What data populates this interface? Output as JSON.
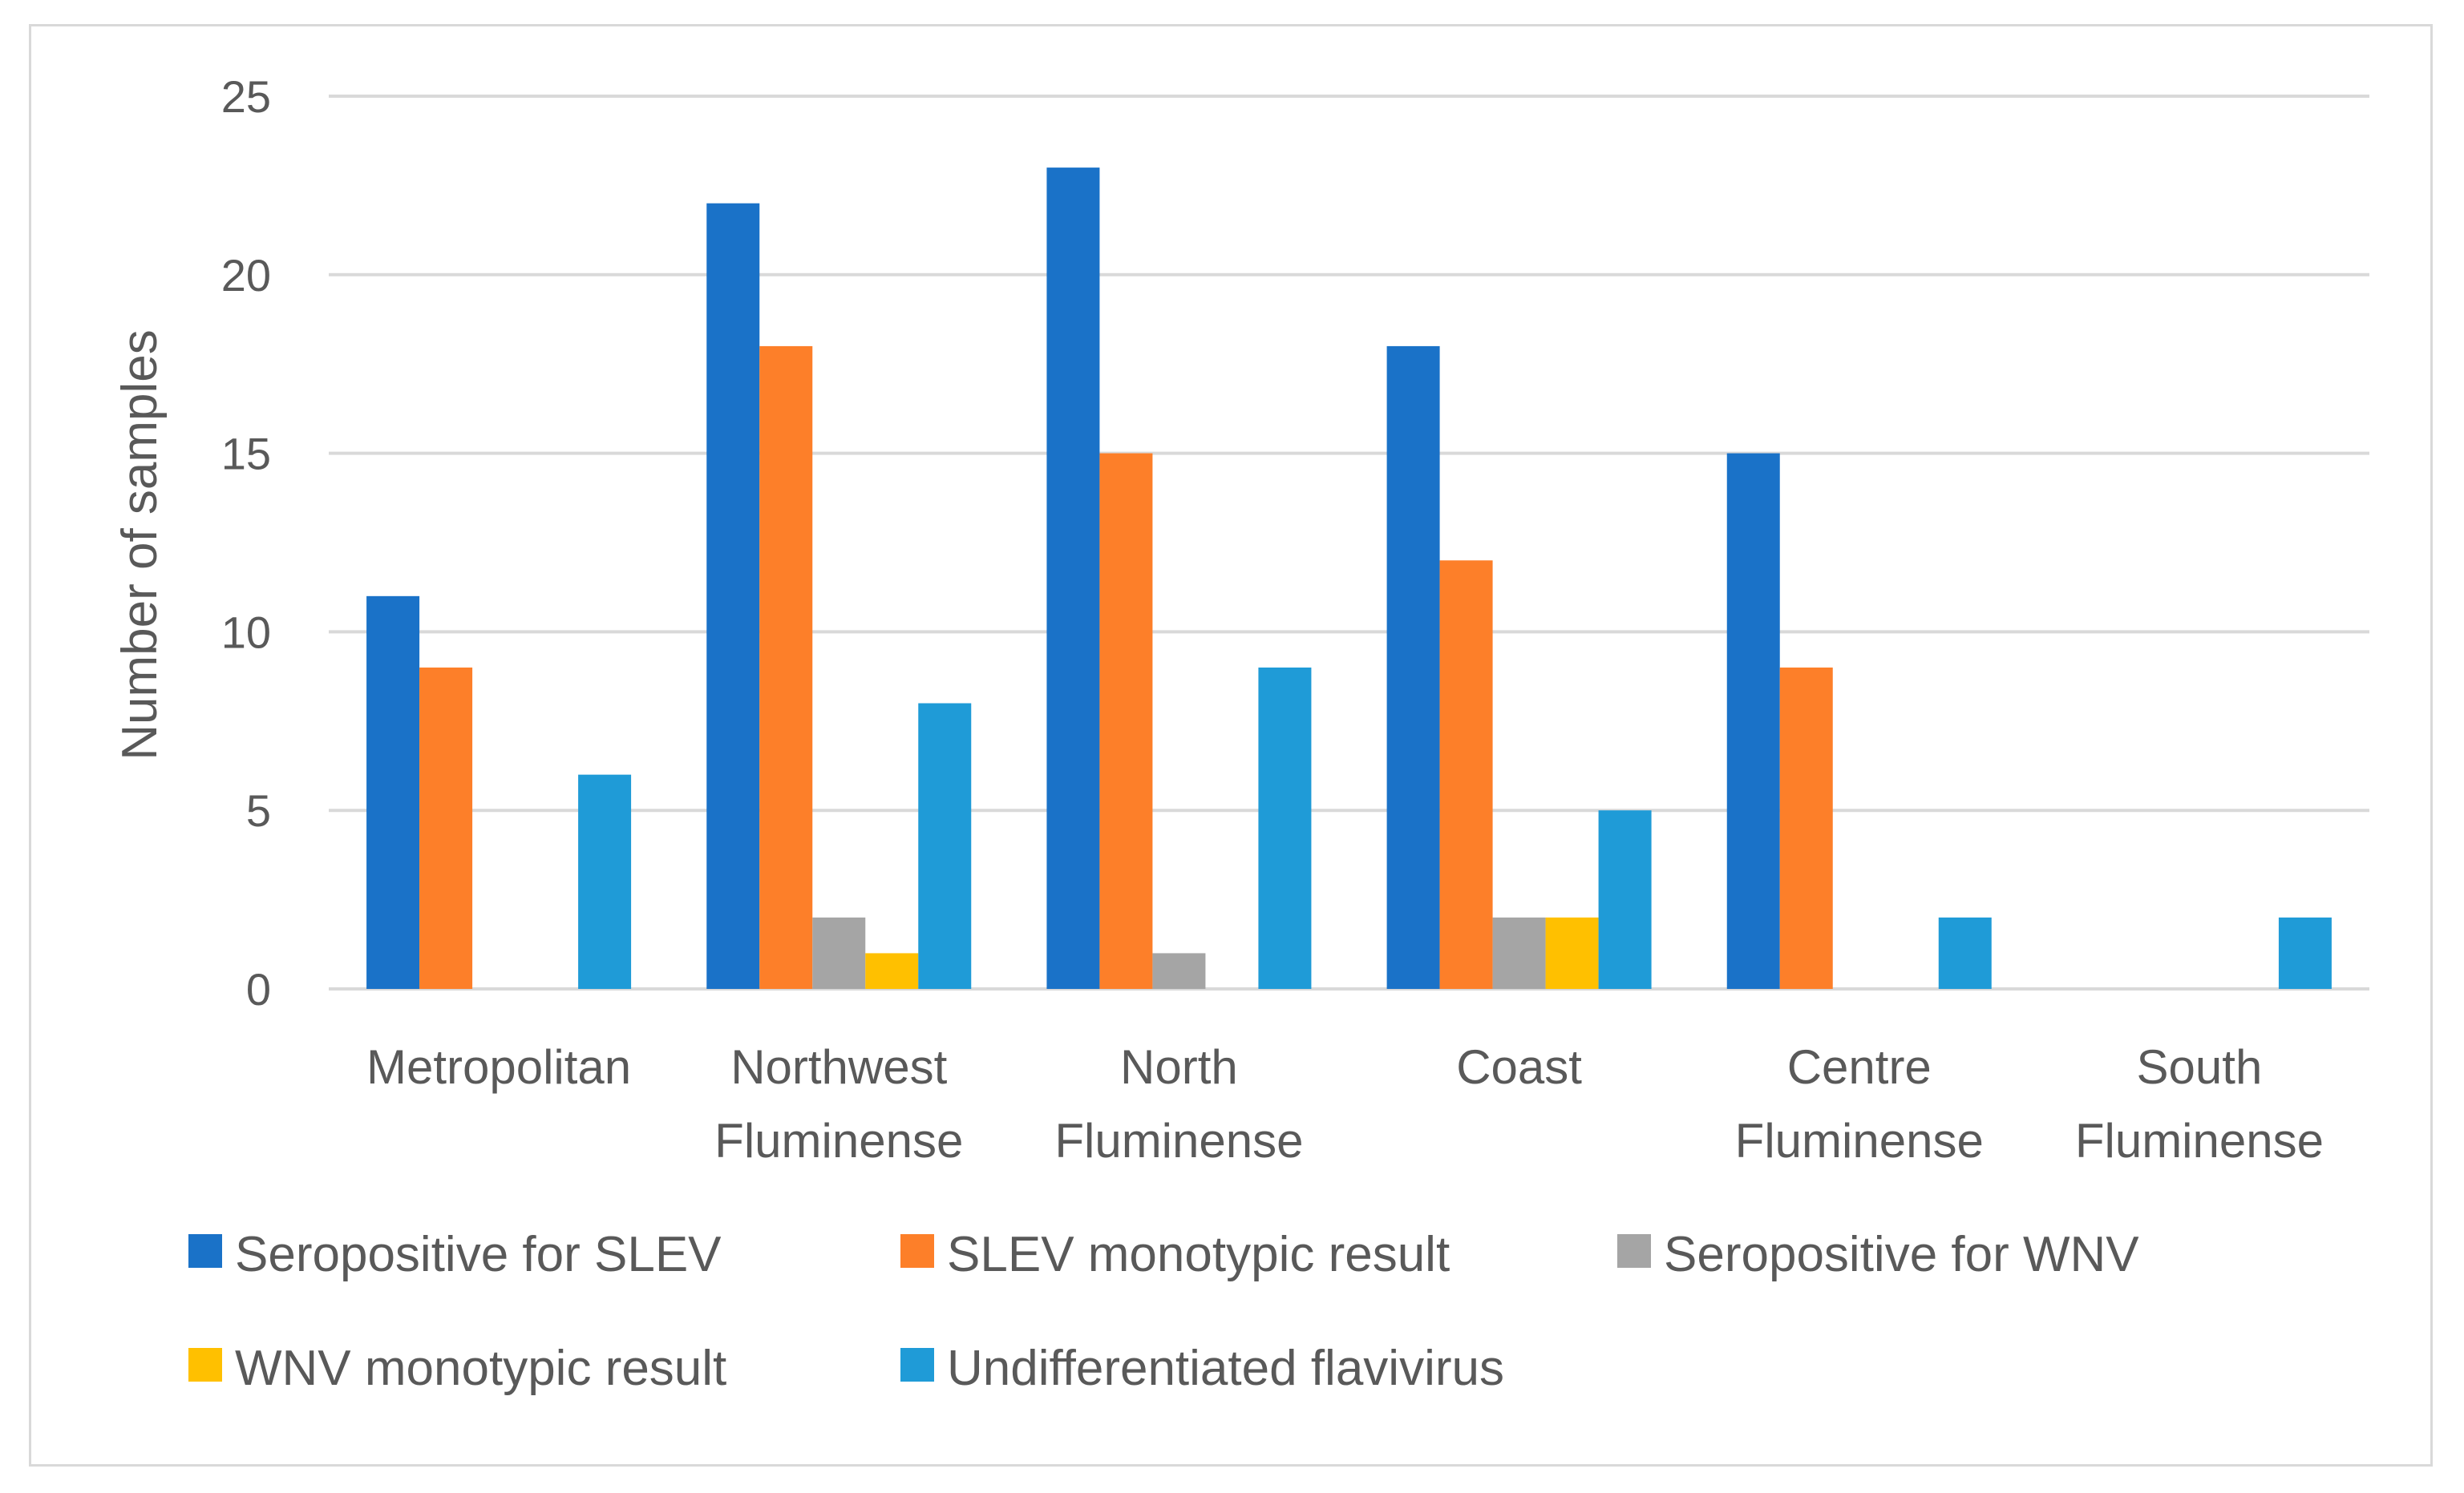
{
  "chart_data": {
    "type": "bar",
    "title": "",
    "xlabel": "",
    "ylabel": "Number of samples",
    "ylim": [
      0,
      25
    ],
    "yticks": [
      0,
      5,
      10,
      15,
      20,
      25
    ],
    "grid": true,
    "legend_position": "bottom",
    "categories": [
      [
        "Metropolitan"
      ],
      [
        "Northwest",
        "Fluminense"
      ],
      [
        "North",
        "Fluminense"
      ],
      [
        "Coast"
      ],
      [
        "Centre",
        "Fluminense"
      ],
      [
        "South",
        "Fluminense"
      ]
    ],
    "series": [
      {
        "name": "Seropositive for SLEV",
        "color": "#1a72c8",
        "values": [
          11,
          22,
          23,
          18,
          15,
          0
        ]
      },
      {
        "name": "SLEV monotypic result",
        "color": "#fd7f29",
        "values": [
          9,
          18,
          15,
          12,
          9,
          0
        ]
      },
      {
        "name": "Seropositive for WNV",
        "color": "#a5a5a5",
        "values": [
          0,
          2,
          1,
          2,
          0,
          0
        ]
      },
      {
        "name": "WNV monotypic result",
        "color": "#ffc000",
        "values": [
          0,
          1,
          0,
          2,
          0,
          0
        ]
      },
      {
        "name": "Undifferentiated flavivirus",
        "color": "#1f9bd7",
        "values": [
          6,
          8,
          9,
          5,
          2,
          2
        ]
      }
    ]
  }
}
